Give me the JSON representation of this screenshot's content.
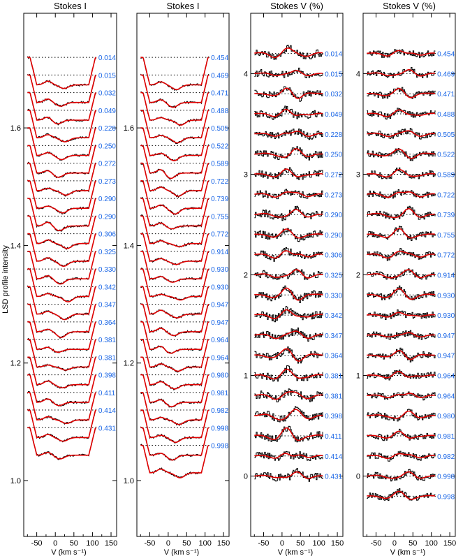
{
  "figure": {
    "ylabel": "LSD profile intensity",
    "xlabel": "V (km s⁻¹)"
  },
  "colors": {
    "model": "#e00000",
    "observed": "#000000",
    "phase_label": "#1a66e6"
  },
  "chart_data": [
    {
      "type": "line",
      "title": "Stokes I",
      "xlabel": "V (km s⁻¹)",
      "ylabel": "LSD profile intensity",
      "xlim": [
        -85,
        165
      ],
      "ylim": [
        0.905,
        1.795
      ],
      "xticks": [
        -50,
        0,
        50,
        100,
        150
      ],
      "yticks": [
        1.0,
        1.2,
        1.4,
        1.6
      ],
      "ytick_labels": [
        "1.0",
        "1.2",
        "1.4",
        "1.6"
      ],
      "show_yticks": true,
      "continuum_start": 1.72,
      "offset_step": 0.03,
      "profile_depth": 0.055,
      "phases": [
        "0.014",
        "0.015",
        "0.032",
        "0.049",
        "0.228",
        "0.250",
        "0.272",
        "0.273",
        "0.290",
        "0.290",
        "0.306",
        "0.325",
        "0.330",
        "0.342",
        "0.347",
        "0.364",
        "0.381",
        "0.381",
        "0.398",
        "0.411",
        "0.414",
        "0.431"
      ]
    },
    {
      "type": "line",
      "title": "Stokes I",
      "xlabel": "V (km s⁻¹)",
      "xlim": [
        -85,
        165
      ],
      "ylim": [
        0.905,
        1.795
      ],
      "xticks": [
        -50,
        0,
        50,
        100,
        150
      ],
      "yticks": [
        1.0,
        1.2,
        1.4,
        1.6
      ],
      "ytick_labels": [
        "1.0",
        "1.2",
        "1.4",
        "1.6"
      ],
      "show_yticks": true,
      "continuum_start": 1.72,
      "offset_step": 0.03,
      "profile_depth": 0.055,
      "phases": [
        "0.454",
        "0.469",
        "0.471",
        "0.488",
        "0.505",
        "0.522",
        "0.589",
        "0.722",
        "0.739",
        "0.755",
        "0.772",
        "0.914",
        "0.930",
        "0.930",
        "0.947",
        "0.947",
        "0.964",
        "0.964",
        "0.980",
        "0.981",
        "0.982",
        "0.998",
        "0.998"
      ]
    },
    {
      "type": "line",
      "title": "Stokes V (%)",
      "xlabel": "V (km s⁻¹)",
      "xlim": [
        -85,
        165
      ],
      "ylim": [
        -0.6,
        4.6
      ],
      "xticks": [
        -50,
        0,
        50,
        100,
        150
      ],
      "yticks": [
        0,
        1,
        2,
        3,
        4
      ],
      "ytick_labels": [
        "0",
        "1",
        "2",
        "3",
        "4"
      ],
      "show_yticks": true,
      "continuum_start": 4.2,
      "offset_step": 0.2,
      "amplitude": 0.06,
      "phases": [
        "0.014",
        "0.015",
        "0.032",
        "0.049",
        "0.228",
        "0.250",
        "0.272",
        "0.273",
        "0.290",
        "0.290",
        "0.306",
        "0.325",
        "0.330",
        "0.342",
        "0.347",
        "0.364",
        "0.381",
        "0.381",
        "0.398",
        "0.411",
        "0.414",
        "0.431"
      ]
    },
    {
      "type": "line",
      "title": "Stokes V (%)",
      "xlabel": "V (km s⁻¹)",
      "xlim": [
        -85,
        165
      ],
      "ylim": [
        -0.6,
        4.6
      ],
      "xticks": [
        -50,
        0,
        50,
        100,
        150
      ],
      "yticks": [
        0,
        1,
        2,
        3,
        4
      ],
      "ytick_labels": [
        "0",
        "1",
        "2",
        "3",
        "4"
      ],
      "show_yticks": true,
      "continuum_start": 4.2,
      "offset_step": 0.2,
      "amplitude": 0.05,
      "phases": [
        "0.454",
        "0.469",
        "0.471",
        "0.488",
        "0.505",
        "0.522",
        "0.589",
        "0.722",
        "0.739",
        "0.755",
        "0.772",
        "0.914",
        "0.930",
        "0.930",
        "0.947",
        "0.947",
        "0.964",
        "0.964",
        "0.980",
        "0.981",
        "0.982",
        "0.998",
        "0.998"
      ]
    }
  ]
}
